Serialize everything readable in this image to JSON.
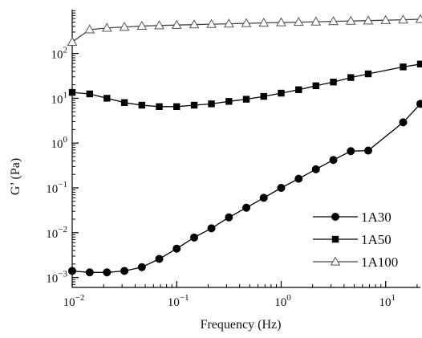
{
  "chart_data": {
    "type": "line",
    "title": "",
    "xlabel": "Frequency (Hz)",
    "ylabel": "G’ (Pa)",
    "xscale": "log",
    "yscale": "log",
    "xlim": [
      0.01,
      21.5
    ],
    "ylim": [
      0.0006,
      950
    ],
    "x_ticks": [
      {
        "value": 0.01,
        "base": "10",
        "exp": "−2"
      },
      {
        "value": 0.1,
        "base": "10",
        "exp": "−1"
      },
      {
        "value": 1,
        "base": "10",
        "exp": "0"
      },
      {
        "value": 10,
        "base": "10",
        "exp": "1"
      }
    ],
    "y_ticks": [
      {
        "value": 0.001,
        "base": "10",
        "exp": "−3"
      },
      {
        "value": 0.01,
        "base": "10",
        "exp": "−2"
      },
      {
        "value": 0.1,
        "base": "10",
        "exp": "−1"
      },
      {
        "value": 1,
        "base": "10",
        "exp": "0"
      },
      {
        "value": 10,
        "base": "10",
        "exp": "1"
      },
      {
        "value": 100,
        "base": "10",
        "exp": "2"
      }
    ],
    "grid": false,
    "legend_position": "lower-right",
    "series": [
      {
        "name": "1A30",
        "marker": "circle",
        "color": "#000000",
        "x": [
          0.01,
          0.0147,
          0.0215,
          0.0316,
          0.0464,
          0.0681,
          0.1,
          0.147,
          0.215,
          0.316,
          0.464,
          0.681,
          1.0,
          1.47,
          2.15,
          3.16,
          4.64,
          6.81,
          14.7,
          21.5
        ],
        "y": [
          0.0014,
          0.0013,
          0.0013,
          0.0014,
          0.0017,
          0.0026,
          0.0044,
          0.0078,
          0.0125,
          0.022,
          0.036,
          0.06,
          0.1,
          0.16,
          0.26,
          0.42,
          0.66,
          0.68,
          2.9,
          7.5
        ]
      },
      {
        "name": "1A50",
        "marker": "square",
        "color": "#000000",
        "x": [
          0.01,
          0.0147,
          0.0215,
          0.0316,
          0.0464,
          0.0681,
          0.1,
          0.147,
          0.215,
          0.316,
          0.464,
          0.681,
          1.0,
          1.47,
          2.15,
          3.16,
          4.64,
          6.81,
          14.7,
          21.5
        ],
        "y": [
          13.5,
          12.5,
          10.0,
          8.0,
          7.0,
          6.5,
          6.5,
          7.0,
          7.5,
          8.5,
          9.5,
          11.0,
          13.0,
          15.5,
          19.0,
          23.0,
          29.0,
          35.0,
          50.0,
          58.0
        ]
      },
      {
        "name": "1A100",
        "marker": "triangle-open",
        "color": "#000000",
        "x": [
          0.01,
          0.0147,
          0.0215,
          0.0316,
          0.0464,
          0.0681,
          0.1,
          0.147,
          0.215,
          0.316,
          0.464,
          0.681,
          1.0,
          1.47,
          2.15,
          3.16,
          4.64,
          6.81,
          10.0,
          14.7,
          21.5
        ],
        "y": [
          180,
          340,
          370,
          390,
          410,
          420,
          430,
          440,
          450,
          460,
          470,
          480,
          490,
          500,
          510,
          520,
          530,
          540,
          550,
          565,
          580
        ]
      }
    ]
  }
}
